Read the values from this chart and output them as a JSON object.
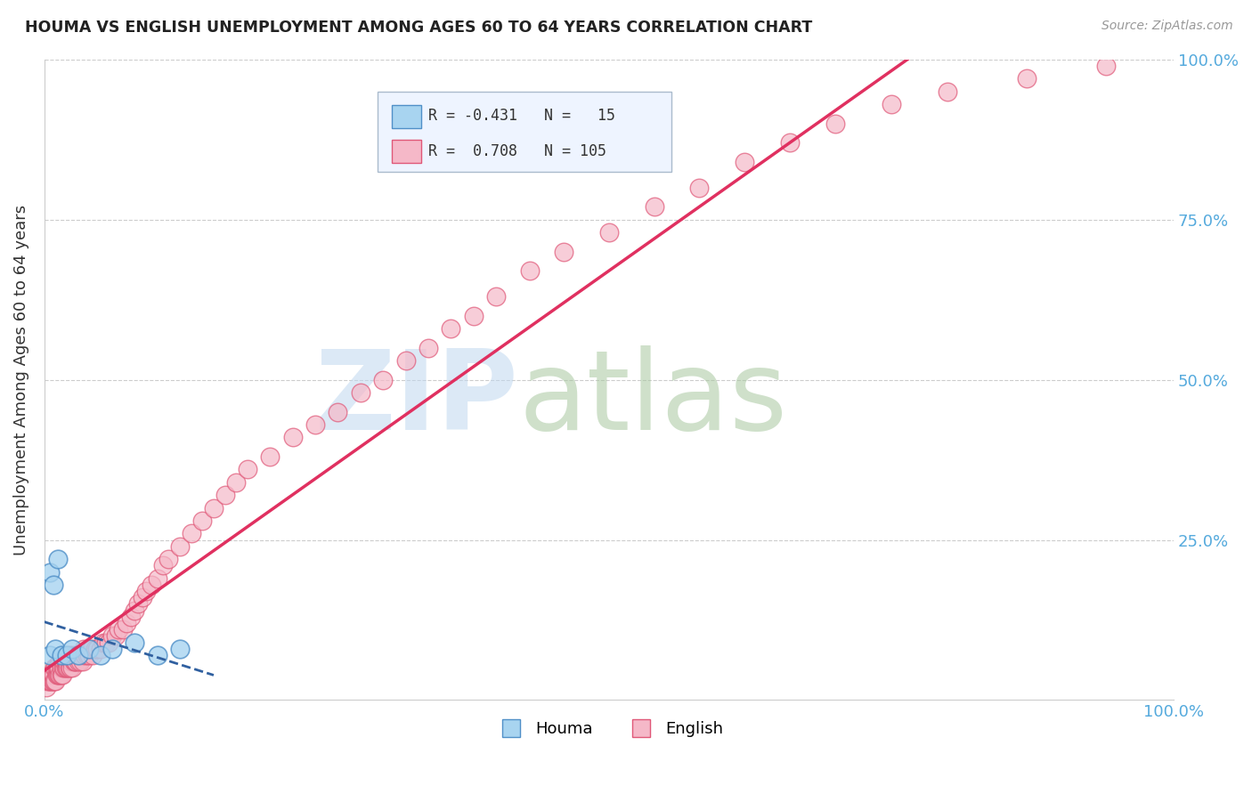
{
  "title": "HOUMA VS ENGLISH UNEMPLOYMENT AMONG AGES 60 TO 64 YEARS CORRELATION CHART",
  "source": "Source: ZipAtlas.com",
  "ylabel": "Unemployment Among Ages 60 to 64 years",
  "xlim": [
    0.0,
    1.0
  ],
  "ylim": [
    0.0,
    1.0
  ],
  "houma_R": -0.431,
  "houma_N": 15,
  "english_R": 0.708,
  "english_N": 105,
  "houma_color": "#A8D4F0",
  "english_color": "#F5B8C8",
  "houma_edge_color": "#5090C8",
  "english_edge_color": "#E05878",
  "houma_line_color": "#3060A0",
  "english_line_color": "#E03060",
  "grid_color": "#CCCCCC",
  "axis_label_color": "#55AADD",
  "title_color": "#222222",
  "watermark_zip_color": "#C0D8F0",
  "watermark_atlas_color": "#A8C8A0",
  "legend_bg_color": "#EEF4FF",
  "legend_border_color": "#AABBCC",
  "houma_x": [
    0.005,
    0.008,
    0.012,
    0.005,
    0.01,
    0.015,
    0.02,
    0.025,
    0.03,
    0.04,
    0.05,
    0.06,
    0.08,
    0.1,
    0.12
  ],
  "houma_y": [
    0.2,
    0.18,
    0.22,
    0.07,
    0.08,
    0.07,
    0.07,
    0.08,
    0.07,
    0.08,
    0.07,
    0.08,
    0.09,
    0.07,
    0.08
  ],
  "english_x": [
    0.002,
    0.003,
    0.004,
    0.005,
    0.005,
    0.006,
    0.007,
    0.007,
    0.008,
    0.008,
    0.009,
    0.009,
    0.01,
    0.01,
    0.011,
    0.011,
    0.012,
    0.012,
    0.013,
    0.013,
    0.014,
    0.014,
    0.015,
    0.015,
    0.016,
    0.016,
    0.017,
    0.018,
    0.018,
    0.019,
    0.019,
    0.02,
    0.02,
    0.021,
    0.022,
    0.022,
    0.023,
    0.024,
    0.025,
    0.025,
    0.026,
    0.027,
    0.028,
    0.028,
    0.03,
    0.03,
    0.032,
    0.033,
    0.034,
    0.035,
    0.036,
    0.038,
    0.04,
    0.042,
    0.043,
    0.045,
    0.047,
    0.05,
    0.052,
    0.055,
    0.057,
    0.06,
    0.063,
    0.066,
    0.07,
    0.073,
    0.077,
    0.08,
    0.083,
    0.087,
    0.09,
    0.095,
    0.1,
    0.105,
    0.11,
    0.12,
    0.13,
    0.14,
    0.15,
    0.16,
    0.17,
    0.18,
    0.2,
    0.22,
    0.24,
    0.26,
    0.28,
    0.3,
    0.32,
    0.34,
    0.36,
    0.38,
    0.4,
    0.43,
    0.46,
    0.5,
    0.54,
    0.58,
    0.62,
    0.66,
    0.7,
    0.75,
    0.8,
    0.87,
    0.94
  ],
  "english_y": [
    0.02,
    0.03,
    0.03,
    0.03,
    0.04,
    0.03,
    0.03,
    0.04,
    0.03,
    0.04,
    0.03,
    0.05,
    0.03,
    0.05,
    0.04,
    0.05,
    0.04,
    0.05,
    0.04,
    0.05,
    0.04,
    0.06,
    0.04,
    0.05,
    0.04,
    0.06,
    0.05,
    0.05,
    0.06,
    0.05,
    0.06,
    0.05,
    0.06,
    0.05,
    0.05,
    0.07,
    0.05,
    0.06,
    0.05,
    0.07,
    0.06,
    0.06,
    0.06,
    0.07,
    0.06,
    0.07,
    0.06,
    0.07,
    0.06,
    0.08,
    0.07,
    0.07,
    0.07,
    0.08,
    0.07,
    0.08,
    0.08,
    0.08,
    0.09,
    0.09,
    0.09,
    0.1,
    0.1,
    0.11,
    0.11,
    0.12,
    0.13,
    0.14,
    0.15,
    0.16,
    0.17,
    0.18,
    0.19,
    0.21,
    0.22,
    0.24,
    0.26,
    0.28,
    0.3,
    0.32,
    0.34,
    0.36,
    0.38,
    0.41,
    0.43,
    0.45,
    0.48,
    0.5,
    0.53,
    0.55,
    0.58,
    0.6,
    0.63,
    0.67,
    0.7,
    0.73,
    0.77,
    0.8,
    0.84,
    0.87,
    0.9,
    0.93,
    0.95,
    0.97,
    0.99
  ]
}
